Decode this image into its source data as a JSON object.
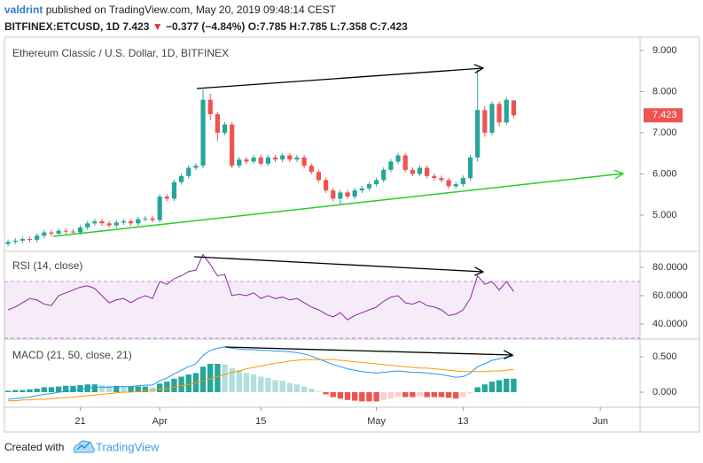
{
  "header": {
    "author": "valdrint",
    "published": "published on TradingView.com, May 20, 2019 09:48:14 CEST",
    "symbol": "BITFINEX:ETCUSD, 1D",
    "last": "7.423",
    "arrow": "▼",
    "change": "−0.377 (−4.84%)",
    "ohlc": "O:7.785 H:7.785 L:7.358 C:7.423"
  },
  "footer": {
    "created": "Created with",
    "brand": "TradingView"
  },
  "chart_data": {
    "type": "candlestick",
    "title": "Ethereum Classic / U.S. Dollar, 1D, BITFINEX",
    "up_color": "#26a69a",
    "down_color": "#ef5350",
    "x": [
      1,
      2,
      3,
      4,
      5,
      6,
      7,
      8,
      9,
      10,
      11,
      12,
      13,
      14,
      15,
      16,
      17,
      18,
      19,
      20,
      21,
      22,
      23,
      24,
      25,
      26,
      27,
      28,
      29,
      30,
      31,
      32,
      33,
      34,
      35,
      36,
      37,
      38,
      39,
      40,
      41,
      42,
      43,
      44,
      45,
      46,
      47,
      48,
      49,
      50,
      51,
      52,
      53,
      54,
      55,
      56,
      57,
      58,
      59,
      60,
      61,
      62,
      63,
      64,
      65,
      66,
      67,
      68,
      69,
      70,
      71
    ],
    "open": [
      4.3,
      4.35,
      4.38,
      4.42,
      4.4,
      4.5,
      4.58,
      4.55,
      4.62,
      4.6,
      4.58,
      4.7,
      4.8,
      4.85,
      4.8,
      4.75,
      4.82,
      4.85,
      4.8,
      4.9,
      4.92,
      4.88,
      5.45,
      5.4,
      5.8,
      5.95,
      6.15,
      6.2,
      7.8,
      7.45,
      7.0,
      7.2,
      6.2,
      6.35,
      6.3,
      6.4,
      6.25,
      6.4,
      6.35,
      6.45,
      6.35,
      6.4,
      6.2,
      6.05,
      5.85,
      5.6,
      5.4,
      5.55,
      5.45,
      5.6,
      5.65,
      5.75,
      5.85,
      6.1,
      6.3,
      6.45,
      6.1,
      6.0,
      6.15,
      5.95,
      5.9,
      5.85,
      5.7,
      5.75,
      5.9,
      6.4,
      7.55,
      7.0,
      7.7,
      7.25,
      7.785
    ],
    "high": [
      4.41,
      4.44,
      4.48,
      4.48,
      4.56,
      4.64,
      4.64,
      4.68,
      4.68,
      4.66,
      4.76,
      4.86,
      4.91,
      4.91,
      4.86,
      4.88,
      4.91,
      4.91,
      4.96,
      4.98,
      4.98,
      5.51,
      5.51,
      5.86,
      6.01,
      6.21,
      6.26,
      8.05,
      7.95,
      7.51,
      7.26,
      7.26,
      6.41,
      6.41,
      6.46,
      6.46,
      6.46,
      6.46,
      6.51,
      6.51,
      6.46,
      6.46,
      6.26,
      6.11,
      5.91,
      5.66,
      5.61,
      5.61,
      5.66,
      5.71,
      5.81,
      5.91,
      6.16,
      6.36,
      6.51,
      6.51,
      6.16,
      6.21,
      6.21,
      6.01,
      5.96,
      5.91,
      5.81,
      5.96,
      6.46,
      8.55,
      7.65,
      7.76,
      7.76,
      7.86,
      7.785
    ],
    "low": [
      4.24,
      4.29,
      4.32,
      4.34,
      4.34,
      4.44,
      4.49,
      4.49,
      4.54,
      4.52,
      4.52,
      4.64,
      4.74,
      4.74,
      4.69,
      4.69,
      4.76,
      4.74,
      4.74,
      4.84,
      4.82,
      4.82,
      5.34,
      5.34,
      5.74,
      5.89,
      6.09,
      6.14,
      7.3,
      6.8,
      6.94,
      6.14,
      6.14,
      6.24,
      6.24,
      6.19,
      6.19,
      6.29,
      6.29,
      6.29,
      6.29,
      6.14,
      5.99,
      5.79,
      5.54,
      5.34,
      5.25,
      5.39,
      5.39,
      5.54,
      5.59,
      5.69,
      5.79,
      6.04,
      6.24,
      6.04,
      5.94,
      5.94,
      5.89,
      5.84,
      5.79,
      5.64,
      5.64,
      5.69,
      5.84,
      6.3,
      6.9,
      6.94,
      7.15,
      7.19,
      7.358
    ],
    "close": [
      4.35,
      4.38,
      4.42,
      4.4,
      4.5,
      4.58,
      4.55,
      4.62,
      4.6,
      4.58,
      4.7,
      4.8,
      4.85,
      4.8,
      4.75,
      4.82,
      4.85,
      4.8,
      4.9,
      4.92,
      4.88,
      5.45,
      5.4,
      5.8,
      5.95,
      6.15,
      6.2,
      7.8,
      7.45,
      7.0,
      7.2,
      6.2,
      6.35,
      6.3,
      6.4,
      6.25,
      6.4,
      6.35,
      6.45,
      6.35,
      6.4,
      6.2,
      6.05,
      5.85,
      5.6,
      5.4,
      5.55,
      5.45,
      5.6,
      5.65,
      5.75,
      5.85,
      6.1,
      6.3,
      6.45,
      6.1,
      6.0,
      6.15,
      5.95,
      5.9,
      5.85,
      5.7,
      5.75,
      5.9,
      6.4,
      7.55,
      7.0,
      7.7,
      7.25,
      7.8,
      7.423
    ],
    "xlim": [
      0.5,
      88.5
    ],
    "xticks": [
      {
        "value": 11,
        "label": "21"
      },
      {
        "value": 22,
        "label": "Apr"
      },
      {
        "value": 36,
        "label": "15"
      },
      {
        "value": 52,
        "label": "May"
      },
      {
        "value": 64,
        "label": "13"
      },
      {
        "value": 83,
        "label": "Jun"
      }
    ],
    "ylim": [
      4.14,
      9.32
    ],
    "yticks": [
      {
        "value": 5,
        "label": "5.000"
      },
      {
        "value": 6,
        "label": "6.000"
      },
      {
        "value": 7,
        "label": "7.000"
      },
      {
        "value": 8,
        "label": "8.000"
      },
      {
        "value": 9,
        "label": "9.000"
      }
    ],
    "indicators": [
      {
        "type": "line",
        "title": "RSI (14, close)",
        "color": "#8e24aa",
        "band": [
          30,
          70
        ],
        "values": [
          50,
          52,
          55,
          58,
          57,
          54,
          53,
          60,
          62,
          64,
          66,
          67,
          65,
          60,
          55,
          57,
          58,
          55,
          58,
          60,
          58,
          70,
          68,
          72,
          74,
          77,
          78,
          89,
          82,
          74,
          75,
          60,
          61,
          60,
          62,
          58,
          60,
          58,
          59,
          57,
          58,
          55,
          52,
          50,
          47,
          45,
          48,
          43,
          46,
          48,
          50,
          52,
          56,
          59,
          60,
          55,
          54,
          56,
          53,
          52,
          50,
          46,
          47,
          50,
          58,
          74,
          68,
          70,
          64,
          70,
          63
        ],
        "ylim": [
          30,
          90.6
        ],
        "yticks": [
          {
            "value": 40,
            "label": "40.0000"
          },
          {
            "value": 60,
            "label": "60.0000"
          },
          {
            "value": 80,
            "label": "80.0000"
          }
        ]
      },
      {
        "type": "macd",
        "title": "MACD (21, 50, close, 21)",
        "series": [
          {
            "style": "histogram",
            "colors": [
              "#26a69a",
              "#b2dfdb",
              "#ffcdd2",
              "#ef5350"
            ],
            "values": [
              0.02,
              0.03,
              0.03,
              0.04,
              0.05,
              0.07,
              0.07,
              0.08,
              0.09,
              0.09,
              0.1,
              0.11,
              0.11,
              0.1,
              0.09,
              0.09,
              0.08,
              0.08,
              0.08,
              0.08,
              0.07,
              0.12,
              0.15,
              0.19,
              0.22,
              0.25,
              0.27,
              0.36,
              0.4,
              0.4,
              0.39,
              0.34,
              0.31,
              0.27,
              0.25,
              0.22,
              0.2,
              0.17,
              0.16,
              0.13,
              0.11,
              0.08,
              0.05,
              0.01,
              -0.03,
              -0.07,
              -0.09,
              -0.11,
              -0.12,
              -0.13,
              -0.13,
              -0.13,
              -0.11,
              -0.09,
              -0.07,
              -0.07,
              -0.07,
              -0.06,
              -0.07,
              -0.07,
              -0.07,
              -0.08,
              -0.09,
              -0.07,
              -0.02,
              0.07,
              0.11,
              0.15,
              0.17,
              0.19,
              0.19
            ]
          },
          {
            "style": "line",
            "color": "#2196f3",
            "values": [
              -0.1,
              -0.09,
              -0.08,
              -0.07,
              -0.05,
              -0.03,
              -0.02,
              0.0,
              0.01,
              0.02,
              0.04,
              0.06,
              0.07,
              0.07,
              0.07,
              0.08,
              0.08,
              0.08,
              0.09,
              0.1,
              0.1,
              0.16,
              0.2,
              0.26,
              0.31,
              0.36,
              0.4,
              0.52,
              0.59,
              0.62,
              0.64,
              0.62,
              0.61,
              0.6,
              0.6,
              0.59,
              0.59,
              0.58,
              0.58,
              0.57,
              0.56,
              0.54,
              0.51,
              0.47,
              0.43,
              0.39,
              0.36,
              0.33,
              0.31,
              0.29,
              0.28,
              0.27,
              0.28,
              0.29,
              0.3,
              0.29,
              0.28,
              0.28,
              0.27,
              0.26,
              0.25,
              0.23,
              0.21,
              0.22,
              0.27,
              0.36,
              0.4,
              0.45,
              0.47,
              0.5,
              0.51
            ]
          },
          {
            "style": "line",
            "color": "#ff9800",
            "values": [
              -0.12,
              -0.12,
              -0.11,
              -0.11,
              -0.1,
              -0.1,
              -0.09,
              -0.08,
              -0.08,
              -0.07,
              -0.06,
              -0.05,
              -0.04,
              -0.03,
              -0.02,
              -0.01,
              0.0,
              0.0,
              0.01,
              0.02,
              0.03,
              0.04,
              0.05,
              0.07,
              0.09,
              0.11,
              0.13,
              0.16,
              0.19,
              0.22,
              0.25,
              0.28,
              0.3,
              0.33,
              0.35,
              0.37,
              0.39,
              0.41,
              0.42,
              0.44,
              0.45,
              0.46,
              0.46,
              0.46,
              0.46,
              0.46,
              0.45,
              0.44,
              0.43,
              0.42,
              0.41,
              0.4,
              0.39,
              0.38,
              0.37,
              0.36,
              0.35,
              0.34,
              0.34,
              0.33,
              0.32,
              0.31,
              0.3,
              0.29,
              0.29,
              0.29,
              0.29,
              0.3,
              0.3,
              0.31,
              0.32
            ]
          }
        ],
        "ylim": [
          -0.2125,
          0.7375
        ],
        "yticks": [
          {
            "value": 0,
            "label": "0.000"
          },
          {
            "value": 0.5,
            "label": "0.500"
          }
        ]
      }
    ]
  }
}
